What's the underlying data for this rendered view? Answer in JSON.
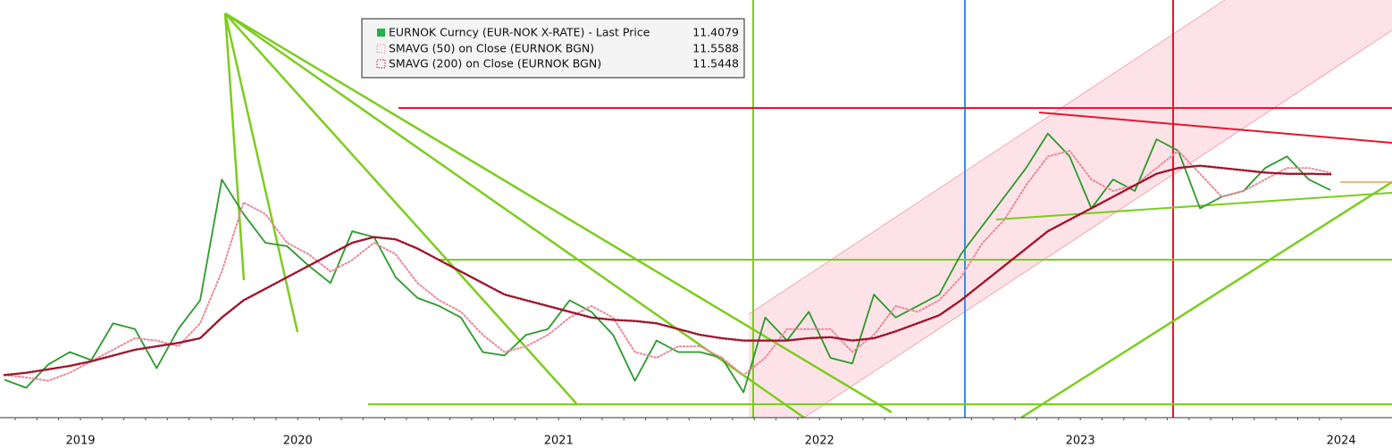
{
  "chart_data": {
    "type": "line",
    "categories": [
      null,
      null,
      null,
      "2019",
      null,
      null,
      null,
      null,
      null,
      null,
      null,
      null,
      null,
      "2020",
      null,
      null,
      null,
      null,
      null,
      null,
      null,
      null,
      null,
      null,
      null,
      "2021",
      null,
      null,
      null,
      null,
      null,
      null,
      null,
      null,
      null,
      null,
      null,
      "2022",
      null,
      null,
      null,
      null,
      null,
      null,
      null,
      null,
      null,
      null,
      null,
      "2023",
      null,
      null,
      null,
      null,
      null,
      null,
      null,
      null,
      null,
      null,
      null,
      "2024"
    ],
    "ylim": [
      9.43,
      13.06
    ],
    "series": [
      {
        "name": "EURNOK Curncy (EUR-NOK X-RATE) - Last Price",
        "color": "#2a9a2a",
        "values": [
          9.76,
          9.69,
          9.89,
          10.0,
          9.93,
          10.25,
          10.2,
          9.86,
          10.2,
          10.45,
          11.5,
          11.2,
          10.95,
          10.92,
          10.75,
          10.6,
          11.05,
          11.0,
          10.65,
          10.47,
          10.4,
          10.3,
          10.0,
          9.97,
          10.15,
          10.2,
          10.45,
          10.35,
          10.15,
          9.75,
          10.1,
          10.0,
          10.0,
          9.95,
          9.65,
          10.3,
          10.1,
          10.35,
          9.95,
          9.9,
          10.5,
          10.3,
          10.4,
          10.5,
          10.85,
          11.1,
          11.35,
          11.6,
          11.9,
          11.7,
          11.25,
          11.5,
          11.4,
          11.85,
          11.75,
          11.25,
          11.35,
          11.4,
          11.6,
          11.7,
          11.5,
          11.4079
        ]
      },
      {
        "name": "SMAVG (50)  on Close (EURNOK BGN)",
        "color": "#e8899a",
        "values": [
          9.8,
          9.78,
          9.75,
          9.82,
          9.92,
          10.02,
          10.12,
          10.1,
          10.05,
          10.25,
          10.7,
          11.3,
          11.2,
          10.95,
          10.85,
          10.7,
          10.8,
          10.95,
          10.85,
          10.6,
          10.45,
          10.35,
          10.15,
          10.0,
          10.05,
          10.15,
          10.3,
          10.4,
          10.3,
          10.0,
          9.95,
          10.05,
          10.05,
          9.95,
          9.8,
          9.95,
          10.2,
          10.2,
          10.2,
          10.0,
          10.15,
          10.4,
          10.35,
          10.45,
          10.65,
          10.95,
          11.15,
          11.45,
          11.7,
          11.75,
          11.5,
          11.4,
          11.45,
          11.6,
          11.75,
          11.55,
          11.35,
          11.4,
          11.5,
          11.6,
          11.6,
          11.5588
        ]
      },
      {
        "name": "SMAVG (200)  on Close (EURNOK BGN)",
        "color": "#a0142c",
        "values": [
          9.8,
          9.82,
          9.85,
          9.88,
          9.92,
          9.97,
          10.02,
          10.05,
          10.08,
          10.12,
          10.3,
          10.45,
          10.55,
          10.65,
          10.75,
          10.85,
          10.95,
          11.0,
          10.98,
          10.9,
          10.8,
          10.7,
          10.6,
          10.5,
          10.45,
          10.4,
          10.35,
          10.3,
          10.28,
          10.27,
          10.25,
          10.2,
          10.15,
          10.12,
          10.1,
          10.1,
          10.1,
          10.12,
          10.13,
          10.1,
          10.12,
          10.18,
          10.25,
          10.32,
          10.45,
          10.6,
          10.75,
          10.9,
          11.05,
          11.15,
          11.25,
          11.35,
          11.45,
          11.55,
          11.6,
          11.62,
          11.6,
          11.58,
          11.56,
          11.55,
          11.55,
          11.5448
        ]
      }
    ]
  }
}
